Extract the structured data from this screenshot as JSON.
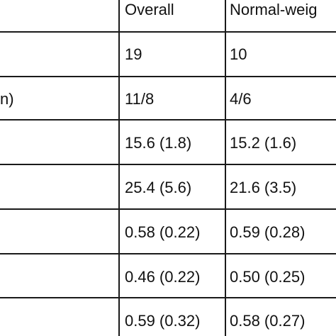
{
  "table": {
    "headers": {
      "overall": "Overall",
      "normal_weight": "Normal-weig"
    },
    "rows": [
      {
        "stub": "",
        "overall": "19",
        "normal_weight": "10"
      },
      {
        "stub": "n)",
        "overall": "11/8",
        "normal_weight": "4/6"
      },
      {
        "stub": "",
        "overall": "15.6 (1.8)",
        "normal_weight": "15.2 (1.6)"
      },
      {
        "stub": "",
        "overall": "25.4 (5.6)",
        "normal_weight": "21.6 (3.5)"
      },
      {
        "stub": "",
        "overall": "0.58 (0.22)",
        "normal_weight": "0.59 (0.28)"
      },
      {
        "stub": "",
        "overall": "0.46 (0.22)",
        "normal_weight": "0.50 (0.25)"
      },
      {
        "stub": "",
        "overall": "0.59 (0.32)",
        "normal_weight": "0.58 (0.27)"
      }
    ]
  }
}
